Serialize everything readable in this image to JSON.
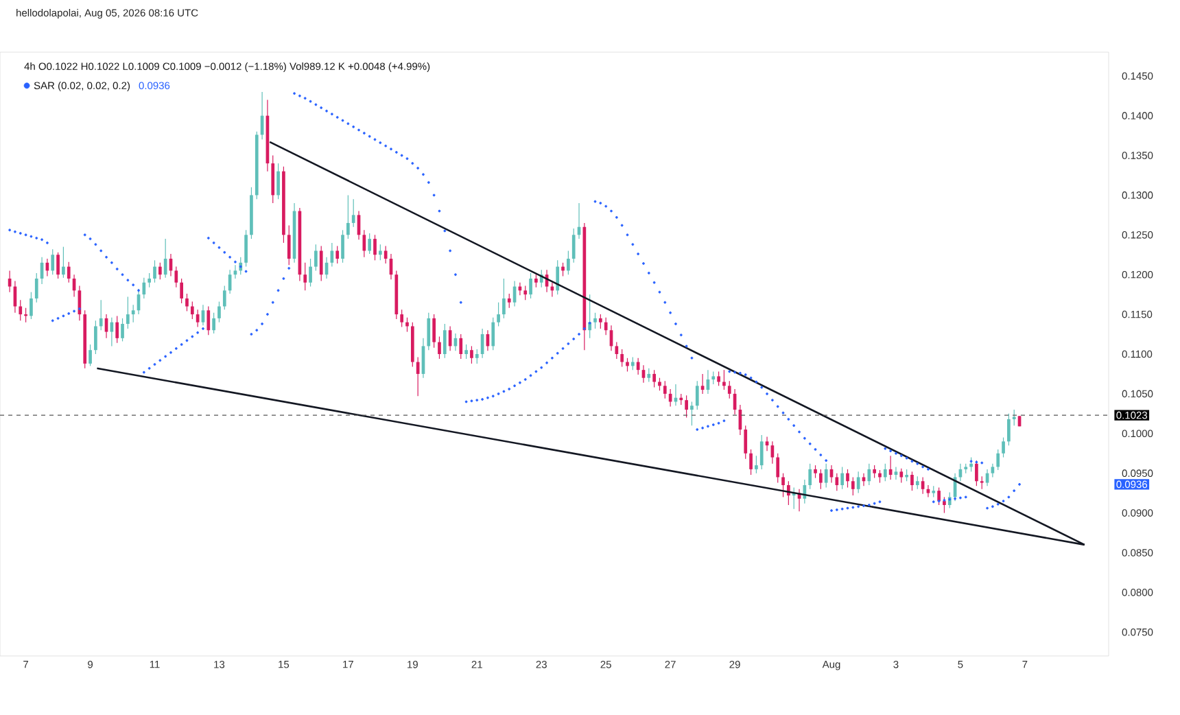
{
  "chart_data": {
    "type": "candlestick",
    "title": "4h  O0.1022 H0.1022 L0.1009 C0.1009 −0.0012 (−1.18%) Vol989.12 K +0.0048 (+4.99%)",
    "annotations": [
      "hellodolapolai, Aug 05, 2026 08:16 UTC",
      "0.0936",
      "0.0936"
    ],
    "x": [
      "2026-07-06T12:00",
      "2026-07-06T16:00",
      "2026-07-06T20:00",
      "2026-07-07T00:00",
      "2026-07-07T04:00",
      "2026-07-07T08:00",
      "2026-07-07T12:00",
      "2026-07-07T16:00",
      "2026-07-07T20:00",
      "2026-07-08T00:00",
      "2026-07-08T04:00",
      "2026-07-08T08:00",
      "2026-07-08T12:00",
      "2026-07-08T16:00",
      "2026-07-08T20:00",
      "2026-07-09T00:00",
      "2026-07-09T04:00",
      "2026-07-09T08:00",
      "2026-07-09T12:00",
      "2026-07-09T16:00",
      "2026-07-09T20:00",
      "2026-07-10T00:00",
      "2026-07-10T04:00",
      "2026-07-10T08:00",
      "2026-07-10T12:00",
      "2026-07-10T16:00",
      "2026-07-10T20:00",
      "2026-07-11T00:00",
      "2026-07-11T04:00",
      "2026-07-11T08:00",
      "2026-07-11T12:00",
      "2026-07-11T16:00",
      "2026-07-11T20:00",
      "2026-07-12T00:00",
      "2026-07-12T04:00",
      "2026-07-12T08:00",
      "2026-07-12T12:00",
      "2026-07-12T16:00",
      "2026-07-12T20:00",
      "2026-07-13T00:00",
      "2026-07-13T04:00",
      "2026-07-13T08:00",
      "2026-07-13T12:00",
      "2026-07-13T16:00",
      "2026-07-13T20:00",
      "2026-07-14T00:00",
      "2026-07-14T04:00",
      "2026-07-14T08:00",
      "2026-07-14T12:00",
      "2026-07-14T16:00",
      "2026-07-14T20:00",
      "2026-07-15T00:00",
      "2026-07-15T04:00",
      "2026-07-15T08:00",
      "2026-07-15T12:00",
      "2026-07-15T16:00",
      "2026-07-15T20:00",
      "2026-07-16T00:00",
      "2026-07-16T04:00",
      "2026-07-16T08:00",
      "2026-07-16T12:00",
      "2026-07-16T16:00",
      "2026-07-16T20:00",
      "2026-07-17T00:00",
      "2026-07-17T04:00",
      "2026-07-17T08:00",
      "2026-07-17T12:00",
      "2026-07-17T16:00",
      "2026-07-17T20:00",
      "2026-07-18T00:00",
      "2026-07-18T04:00",
      "2026-07-18T08:00",
      "2026-07-18T12:00",
      "2026-07-18T16:00",
      "2026-07-18T20:00",
      "2026-07-19T00:00",
      "2026-07-19T04:00",
      "2026-07-19T08:00",
      "2026-07-19T12:00",
      "2026-07-19T16:00",
      "2026-07-19T20:00",
      "2026-07-20T00:00",
      "2026-07-20T04:00",
      "2026-07-20T08:00",
      "2026-07-20T12:00",
      "2026-07-20T16:00",
      "2026-07-20T20:00",
      "2026-07-21T00:00",
      "2026-07-21T04:00",
      "2026-07-21T08:00",
      "2026-07-21T12:00",
      "2026-07-21T16:00",
      "2026-07-21T20:00",
      "2026-07-22T00:00",
      "2026-07-22T04:00",
      "2026-07-22T08:00",
      "2026-07-22T12:00",
      "2026-07-22T16:00",
      "2026-07-22T20:00",
      "2026-07-23T00:00",
      "2026-07-23T04:00",
      "2026-07-23T08:00",
      "2026-07-23T12:00",
      "2026-07-23T16:00",
      "2026-07-23T20:00",
      "2026-07-24T00:00",
      "2026-07-24T04:00",
      "2026-07-24T08:00",
      "2026-07-24T12:00",
      "2026-07-24T16:00",
      "2026-07-24T20:00",
      "2026-07-25T00:00",
      "2026-07-25T04:00",
      "2026-07-25T08:00",
      "2026-07-25T12:00",
      "2026-07-25T16:00",
      "2026-07-25T20:00",
      "2026-07-26T00:00",
      "2026-07-26T04:00",
      "2026-07-26T08:00",
      "2026-07-26T12:00",
      "2026-07-26T16:00",
      "2026-07-26T20:00",
      "2026-07-27T00:00",
      "2026-07-27T04:00",
      "2026-07-27T08:00",
      "2026-07-27T12:00",
      "2026-07-27T16:00",
      "2026-07-27T20:00",
      "2026-07-28T00:00",
      "2026-07-28T04:00",
      "2026-07-28T08:00",
      "2026-07-28T12:00",
      "2026-07-28T16:00",
      "2026-07-28T20:00",
      "2026-07-29T00:00",
      "2026-07-29T04:00",
      "2026-07-29T08:00",
      "2026-07-29T12:00",
      "2026-07-29T16:00",
      "2026-07-29T20:00",
      "2026-07-30T00:00",
      "2026-07-30T04:00",
      "2026-07-30T08:00",
      "2026-07-30T12:00",
      "2026-07-30T16:00",
      "2026-07-30T20:00",
      "2026-07-31T00:00",
      "2026-07-31T04:00",
      "2026-07-31T08:00",
      "2026-07-31T12:00",
      "2026-07-31T16:00",
      "2026-07-31T20:00",
      "2026-08-01T00:00",
      "2026-08-01T04:00",
      "2026-08-01T08:00",
      "2026-08-01T12:00",
      "2026-08-01T16:00",
      "2026-08-01T20:00",
      "2026-08-02T00:00",
      "2026-08-02T04:00",
      "2026-08-02T08:00",
      "2026-08-02T12:00",
      "2026-08-02T16:00",
      "2026-08-02T20:00",
      "2026-08-03T00:00",
      "2026-08-03T04:00",
      "2026-08-03T08:00",
      "2026-08-03T12:00",
      "2026-08-03T16:00",
      "2026-08-03T20:00",
      "2026-08-04T00:00",
      "2026-08-04T04:00",
      "2026-08-04T08:00",
      "2026-08-04T12:00",
      "2026-08-04T16:00",
      "2026-08-04T20:00",
      "2026-08-05T00:00",
      "2026-08-05T04:00",
      "2026-08-05T08:00",
      "2026-08-05T12:00",
      "2026-08-05T16:00",
      "2026-08-05T20:00",
      "2026-08-06T00:00",
      "2026-08-06T04:00",
      "2026-08-06T08:00",
      "2026-08-06T12:00",
      "2026-08-06T16:00",
      "2026-08-06T20:00"
    ],
    "ohlc": [
      [
        0.1195,
        0.1205,
        0.1178,
        0.1185
      ],
      [
        0.1185,
        0.1192,
        0.1152,
        0.116
      ],
      [
        0.116,
        0.1168,
        0.1142,
        0.115
      ],
      [
        0.115,
        0.1158,
        0.114,
        0.1148
      ],
      [
        0.1148,
        0.1178,
        0.1144,
        0.117
      ],
      [
        0.117,
        0.1202,
        0.1165,
        0.1195
      ],
      [
        0.1195,
        0.1222,
        0.1188,
        0.1215
      ],
      [
        0.1215,
        0.122,
        0.1198,
        0.1205
      ],
      [
        0.1205,
        0.1232,
        0.12,
        0.1225
      ],
      [
        0.1225,
        0.1228,
        0.1195,
        0.12
      ],
      [
        0.12,
        0.1235,
        0.1196,
        0.121
      ],
      [
        0.121,
        0.1216,
        0.119,
        0.1195
      ],
      [
        0.1195,
        0.12,
        0.1172,
        0.118
      ],
      [
        0.118,
        0.1186,
        0.1142,
        0.115
      ],
      [
        0.115,
        0.1155,
        0.1082,
        0.1088
      ],
      [
        0.1088,
        0.1112,
        0.1085,
        0.1105
      ],
      [
        0.1105,
        0.1142,
        0.11,
        0.1135
      ],
      [
        0.1135,
        0.1168,
        0.113,
        0.1145
      ],
      [
        0.1145,
        0.115,
        0.112,
        0.1128
      ],
      [
        0.1128,
        0.1146,
        0.111,
        0.114
      ],
      [
        0.114,
        0.1148,
        0.1114,
        0.112
      ],
      [
        0.112,
        0.1145,
        0.1116,
        0.1138
      ],
      [
        0.1138,
        0.1172,
        0.1132,
        0.115
      ],
      [
        0.115,
        0.1162,
        0.114,
        0.1155
      ],
      [
        0.1155,
        0.1182,
        0.115,
        0.1175
      ],
      [
        0.1175,
        0.1196,
        0.117,
        0.119
      ],
      [
        0.119,
        0.1202,
        0.1184,
        0.1195
      ],
      [
        0.1195,
        0.1218,
        0.119,
        0.121
      ],
      [
        0.121,
        0.1215,
        0.1194,
        0.12
      ],
      [
        0.12,
        0.1245,
        0.1196,
        0.122
      ],
      [
        0.122,
        0.1226,
        0.1198,
        0.1205
      ],
      [
        0.1205,
        0.121,
        0.1184,
        0.119
      ],
      [
        0.119,
        0.1195,
        0.1164,
        0.117
      ],
      [
        0.117,
        0.1176,
        0.1154,
        0.116
      ],
      [
        0.116,
        0.1166,
        0.1144,
        0.115
      ],
      [
        0.115,
        0.1156,
        0.1134,
        0.114
      ],
      [
        0.114,
        0.1162,
        0.1136,
        0.1155
      ],
      [
        0.1155,
        0.116,
        0.1124,
        0.113
      ],
      [
        0.113,
        0.1152,
        0.1126,
        0.1145
      ],
      [
        0.1145,
        0.1166,
        0.114,
        0.116
      ],
      [
        0.116,
        0.1186,
        0.1156,
        0.118
      ],
      [
        0.118,
        0.1206,
        0.1176,
        0.12
      ],
      [
        0.12,
        0.1212,
        0.1195,
        0.1205
      ],
      [
        0.1205,
        0.1222,
        0.12,
        0.1215
      ],
      [
        0.1215,
        0.1256,
        0.121,
        0.125
      ],
      [
        0.125,
        0.131,
        0.1245,
        0.13
      ],
      [
        0.13,
        0.138,
        0.1295,
        0.1376
      ],
      [
        0.1376,
        0.143,
        0.137,
        0.14
      ],
      [
        0.14,
        0.142,
        0.133,
        0.134
      ],
      [
        0.134,
        0.135,
        0.129,
        0.13
      ],
      [
        0.13,
        0.134,
        0.1295,
        0.133
      ],
      [
        0.133,
        0.1336,
        0.124,
        0.125
      ],
      [
        0.125,
        0.1262,
        0.1212,
        0.122
      ],
      [
        0.122,
        0.129,
        0.1215,
        0.128
      ],
      [
        0.128,
        0.1284,
        0.1192,
        0.12
      ],
      [
        0.12,
        0.1215,
        0.118,
        0.119
      ],
      [
        0.119,
        0.122,
        0.1185,
        0.121
      ],
      [
        0.121,
        0.1238,
        0.1205,
        0.123
      ],
      [
        0.123,
        0.1236,
        0.1192,
        0.12
      ],
      [
        0.12,
        0.1222,
        0.1195,
        0.1215
      ],
      [
        0.1215,
        0.124,
        0.121,
        0.123
      ],
      [
        0.123,
        0.1236,
        0.1214,
        0.122
      ],
      [
        0.122,
        0.1256,
        0.1215,
        0.125
      ],
      [
        0.125,
        0.13,
        0.1245,
        0.1265
      ],
      [
        0.1265,
        0.1295,
        0.126,
        0.1275
      ],
      [
        0.1275,
        0.128,
        0.1244,
        0.125
      ],
      [
        0.125,
        0.1256,
        0.1222,
        0.123
      ],
      [
        0.123,
        0.1252,
        0.1226,
        0.1245
      ],
      [
        0.1245,
        0.125,
        0.1218,
        0.1225
      ],
      [
        0.1225,
        0.1238,
        0.1218,
        0.123
      ],
      [
        0.123,
        0.1236,
        0.1214,
        0.122
      ],
      [
        0.122,
        0.1226,
        0.1194,
        0.12
      ],
      [
        0.12,
        0.1205,
        0.1144,
        0.115
      ],
      [
        0.115,
        0.1156,
        0.1134,
        0.114
      ],
      [
        0.114,
        0.1146,
        0.1128,
        0.1135
      ],
      [
        0.1135,
        0.114,
        0.1084,
        0.109
      ],
      [
        0.109,
        0.1096,
        0.1047,
        0.1075
      ],
      [
        0.1075,
        0.112,
        0.107,
        0.111
      ],
      [
        0.111,
        0.1152,
        0.1105,
        0.1145
      ],
      [
        0.1145,
        0.115,
        0.1108,
        0.1115
      ],
      [
        0.1115,
        0.1122,
        0.1094,
        0.11
      ],
      [
        0.11,
        0.1138,
        0.1095,
        0.113
      ],
      [
        0.113,
        0.1135,
        0.1104,
        0.111
      ],
      [
        0.111,
        0.1126,
        0.1104,
        0.112
      ],
      [
        0.112,
        0.1125,
        0.1094,
        0.11
      ],
      [
        0.11,
        0.1112,
        0.1094,
        0.1105
      ],
      [
        0.1105,
        0.111,
        0.1088,
        0.1095
      ],
      [
        0.1095,
        0.1106,
        0.1088,
        0.11
      ],
      [
        0.11,
        0.1132,
        0.1095,
        0.1125
      ],
      [
        0.1125,
        0.113,
        0.1104,
        0.111
      ],
      [
        0.111,
        0.1146,
        0.1105,
        0.114
      ],
      [
        0.114,
        0.1165,
        0.1135,
        0.115
      ],
      [
        0.115,
        0.1195,
        0.1145,
        0.117
      ],
      [
        0.117,
        0.1176,
        0.1158,
        0.1165
      ],
      [
        0.1165,
        0.1192,
        0.116,
        0.1185
      ],
      [
        0.1185,
        0.119,
        0.1174,
        0.118
      ],
      [
        0.118,
        0.1186,
        0.1168,
        0.1175
      ],
      [
        0.1175,
        0.1202,
        0.117,
        0.1195
      ],
      [
        0.1195,
        0.12,
        0.1184,
        0.119
      ],
      [
        0.119,
        0.1206,
        0.1184,
        0.12
      ],
      [
        0.12,
        0.1206,
        0.1178,
        0.1185
      ],
      [
        0.1185,
        0.119,
        0.1172,
        0.118
      ],
      [
        0.118,
        0.1218,
        0.1175,
        0.121
      ],
      [
        0.121,
        0.1215,
        0.1198,
        0.1205
      ],
      [
        0.1205,
        0.123,
        0.12,
        0.122
      ],
      [
        0.122,
        0.1258,
        0.1215,
        0.125
      ],
      [
        0.125,
        0.129,
        0.1245,
        0.126
      ],
      [
        0.126,
        0.1265,
        0.1105,
        0.113
      ],
      [
        0.113,
        0.1175,
        0.112,
        0.114
      ],
      [
        0.114,
        0.1152,
        0.1132,
        0.1145
      ],
      [
        0.1145,
        0.115,
        0.1132,
        0.114
      ],
      [
        0.114,
        0.1146,
        0.1124,
        0.113
      ],
      [
        0.113,
        0.1136,
        0.1104,
        0.111
      ],
      [
        0.111,
        0.1115,
        0.1094,
        0.11
      ],
      [
        0.11,
        0.1106,
        0.1084,
        0.109
      ],
      [
        0.109,
        0.1095,
        0.1078,
        0.1085
      ],
      [
        0.1085,
        0.1096,
        0.108,
        0.109
      ],
      [
        0.109,
        0.1095,
        0.1074,
        0.108
      ],
      [
        0.108,
        0.1086,
        0.1064,
        0.107
      ],
      [
        0.107,
        0.1082,
        0.1065,
        0.1075
      ],
      [
        0.1075,
        0.108,
        0.1058,
        0.1065
      ],
      [
        0.1065,
        0.107,
        0.1054,
        0.106
      ],
      [
        0.106,
        0.1066,
        0.1044,
        0.105
      ],
      [
        0.105,
        0.1056,
        0.1034,
        0.104
      ],
      [
        0.104,
        0.1062,
        0.1035,
        0.1045
      ],
      [
        0.1045,
        0.105,
        0.1036,
        0.1042
      ],
      [
        0.1042,
        0.1048,
        0.102,
        0.103
      ],
      [
        0.103,
        0.104,
        0.101,
        0.1035
      ],
      [
        0.1035,
        0.1066,
        0.103,
        0.106
      ],
      [
        0.106,
        0.1075,
        0.105,
        0.1055
      ],
      [
        0.1055,
        0.108,
        0.105,
        0.1068
      ],
      [
        0.1068,
        0.1078,
        0.1062,
        0.1072
      ],
      [
        0.1072,
        0.1078,
        0.106,
        0.1065
      ],
      [
        0.1065,
        0.108,
        0.1055,
        0.106
      ],
      [
        0.106,
        0.1066,
        0.1044,
        0.105
      ],
      [
        0.105,
        0.1056,
        0.1024,
        0.103
      ],
      [
        0.103,
        0.1036,
        0.0998,
        0.1005
      ],
      [
        0.1005,
        0.101,
        0.0968,
        0.0975
      ],
      [
        0.0975,
        0.098,
        0.0948,
        0.0955
      ],
      [
        0.0955,
        0.0972,
        0.095,
        0.096
      ],
      [
        0.096,
        0.0998,
        0.0955,
        0.099
      ],
      [
        0.099,
        0.0996,
        0.0978,
        0.0985
      ],
      [
        0.0985,
        0.099,
        0.0962,
        0.097
      ],
      [
        0.097,
        0.0975,
        0.0938,
        0.0945
      ],
      [
        0.0945,
        0.095,
        0.092,
        0.0935
      ],
      [
        0.0935,
        0.094,
        0.091,
        0.0922
      ],
      [
        0.0922,
        0.0932,
        0.0905,
        0.0925
      ],
      [
        0.0925,
        0.093,
        0.0902,
        0.0918
      ],
      [
        0.0918,
        0.0942,
        0.0912,
        0.0935
      ],
      [
        0.0935,
        0.0962,
        0.093,
        0.0955
      ],
      [
        0.0955,
        0.096,
        0.0944,
        0.095
      ],
      [
        0.095,
        0.0955,
        0.093,
        0.0938
      ],
      [
        0.0938,
        0.0962,
        0.0932,
        0.0955
      ],
      [
        0.0955,
        0.096,
        0.0938,
        0.0945
      ],
      [
        0.0945,
        0.095,
        0.0928,
        0.0935
      ],
      [
        0.0935,
        0.0958,
        0.093,
        0.095
      ],
      [
        0.095,
        0.0955,
        0.0932,
        0.094
      ],
      [
        0.094,
        0.0945,
        0.0922,
        0.093
      ],
      [
        0.093,
        0.0952,
        0.0925,
        0.0945
      ],
      [
        0.0945,
        0.095,
        0.0934,
        0.094
      ],
      [
        0.094,
        0.0962,
        0.0935,
        0.0955
      ],
      [
        0.0955,
        0.096,
        0.0944,
        0.095
      ],
      [
        0.095,
        0.0954,
        0.0938,
        0.0945
      ],
      [
        0.0945,
        0.0962,
        0.094,
        0.0955
      ],
      [
        0.0955,
        0.0972,
        0.0942,
        0.0948
      ],
      [
        0.0948,
        0.0958,
        0.0942,
        0.0952
      ],
      [
        0.0952,
        0.0956,
        0.0938,
        0.0945
      ],
      [
        0.0945,
        0.0955,
        0.094,
        0.0948
      ],
      [
        0.0948,
        0.0952,
        0.0928,
        0.0935
      ],
      [
        0.0935,
        0.0946,
        0.093,
        0.094
      ],
      [
        0.094,
        0.0945,
        0.0924,
        0.093
      ],
      [
        0.093,
        0.0935,
        0.092,
        0.0925
      ],
      [
        0.0925,
        0.0934,
        0.092,
        0.0928
      ],
      [
        0.0928,
        0.0932,
        0.091,
        0.0915
      ],
      [
        0.0915,
        0.092,
        0.09,
        0.091
      ],
      [
        0.091,
        0.0926,
        0.0906,
        0.092
      ],
      [
        0.092,
        0.095,
        0.0915,
        0.0945
      ],
      [
        0.0945,
        0.0962,
        0.094,
        0.0955
      ],
      [
        0.0955,
        0.0962,
        0.095,
        0.0958
      ],
      [
        0.0958,
        0.097,
        0.0952,
        0.0962
      ],
      [
        0.0962,
        0.0966,
        0.0934,
        0.094
      ],
      [
        0.094,
        0.0946,
        0.093,
        0.0938
      ],
      [
        0.0938,
        0.0955,
        0.0934,
        0.095
      ],
      [
        0.095,
        0.0962,
        0.0945,
        0.0958
      ],
      [
        0.0958,
        0.098,
        0.0954,
        0.0975
      ],
      [
        0.0975,
        0.0995,
        0.097,
        0.099
      ],
      [
        0.099,
        0.1025,
        0.0985,
        0.1018
      ],
      [
        0.1018,
        0.103,
        0.101,
        0.1021
      ],
      [
        0.1022,
        0.1022,
        0.1009,
        0.1009
      ]
    ],
    "series": [
      {
        "name": "SAR (0.02, 0.02, 0.2)",
        "type": "scatter",
        "color": "#2962ff",
        "marker": "circle",
        "values": [
          0.1256,
          0.1254,
          0.1252,
          0.125,
          0.1248,
          0.1246,
          0.1244,
          0.124,
          0.1142,
          0.1145,
          0.1148,
          0.1151,
          0.1154,
          0.1157,
          0.125,
          0.1245,
          0.1238,
          0.123,
          0.1222,
          0.1215,
          0.1207,
          0.12,
          0.1193,
          0.1187,
          0.118,
          0.1077,
          0.1082,
          0.1087,
          0.1092,
          0.1097,
          0.1102,
          0.1107,
          0.1112,
          0.1117,
          0.1122,
          0.1127,
          0.1132,
          0.1246,
          0.124,
          0.1234,
          0.1228,
          0.1222,
          0.1216,
          0.121,
          0.1204,
          0.1125,
          0.113,
          0.1138,
          0.115,
          0.1165,
          0.118,
          0.1195,
          0.1208,
          0.1428,
          0.1425,
          0.1422,
          0.1418,
          0.1414,
          0.141,
          0.1406,
          0.1402,
          0.1398,
          0.1394,
          0.139,
          0.1386,
          0.1382,
          0.1378,
          0.1374,
          0.137,
          0.1366,
          0.1362,
          0.1358,
          0.1354,
          0.135,
          0.1346,
          0.134,
          0.1334,
          0.1326,
          0.1316,
          0.13,
          0.128,
          0.1255,
          0.123,
          0.12,
          0.1165,
          0.104,
          0.1041,
          0.1042,
          0.1043,
          0.1045,
          0.1047,
          0.105,
          0.1053,
          0.1056,
          0.106,
          0.1064,
          0.1068,
          0.1073,
          0.1078,
          0.1083,
          0.1089,
          0.1095,
          0.1101,
          0.1107,
          0.1113,
          0.1119,
          0.1125,
          0.1132,
          0.1139,
          0.1292,
          0.129,
          0.1286,
          0.128,
          0.1272,
          0.1262,
          0.125,
          0.1238,
          0.1226,
          0.1214,
          0.1202,
          0.119,
          0.1178,
          0.1165,
          0.1152,
          0.1138,
          0.1124,
          0.111,
          0.1095,
          0.1005,
          0.1007,
          0.1009,
          0.1011,
          0.1013,
          0.1016,
          0.1078,
          0.1077,
          0.1076,
          0.1074,
          0.107,
          0.1065,
          0.1058,
          0.105,
          0.1042,
          0.1034,
          0.1026,
          0.1018,
          0.101,
          0.1002,
          0.0994,
          0.0987,
          0.098,
          0.0973,
          0.0966,
          0.0903,
          0.0904,
          0.0905,
          0.0906,
          0.0907,
          0.0908,
          0.0909,
          0.091,
          0.0912,
          0.0914,
          0.0981,
          0.0978,
          0.0975,
          0.0972,
          0.0969,
          0.0965,
          0.0962,
          0.0958,
          0.0955,
          0.0914,
          0.0915,
          0.0916,
          0.0917,
          0.0918,
          0.0919,
          0.092,
          0.0965,
          0.0964,
          0.0963,
          0.0906,
          0.0908,
          0.0911,
          0.0915,
          0.092,
          0.0928,
          0.0936
        ]
      },
      {
        "type": "line",
        "color": "#131722",
        "x": [
          "2026-07-14T13:41",
          "2026-08-08T20:24"
        ],
        "values": [
          0.1367,
          0.086
        ]
      },
      {
        "type": "line",
        "color": "#131722",
        "x": [
          "2026-07-09T05:02",
          "2026-08-08T20:24"
        ],
        "values": [
          0.1082,
          0.086
        ]
      }
    ],
    "legend": "top left",
    "ref_lines": [
      {
        "axis": "y",
        "value": 0.1023,
        "label": "0.1023",
        "color": "#555555",
        "line_style": "dashed"
      }
    ],
    "xlim": [
      "2026-07-06T04:48",
      "2026-08-09T14:24"
    ],
    "xticks": [
      {
        "value": "2026-07-07",
        "label": "7"
      },
      {
        "value": "2026-07-09",
        "label": "9"
      },
      {
        "value": "2026-07-11",
        "label": "11"
      },
      {
        "value": "2026-07-13",
        "label": "13"
      },
      {
        "value": "2026-07-15",
        "label": "15"
      },
      {
        "value": "2026-07-17",
        "label": "17"
      },
      {
        "value": "2026-07-19",
        "label": "19"
      },
      {
        "value": "2026-07-21",
        "label": "21"
      },
      {
        "value": "2026-07-23",
        "label": "23"
      },
      {
        "value": "2026-07-25",
        "label": "25"
      },
      {
        "value": "2026-07-27",
        "label": "27"
      },
      {
        "value": "2026-07-29",
        "label": "29"
      },
      {
        "value": "2026-08-01",
        "label": "Aug"
      },
      {
        "value": "2026-08-03",
        "label": "3"
      },
      {
        "value": "2026-08-05",
        "label": "5"
      },
      {
        "value": "2026-08-07",
        "label": "7"
      }
    ],
    "ylim": [
      0.072,
      0.148
    ],
    "yticks": [
      {
        "value": 0.075,
        "label": "0.0750"
      },
      {
        "value": 0.08,
        "label": "0.0800"
      },
      {
        "value": 0.085,
        "label": "0.0850"
      },
      {
        "value": 0.09,
        "label": "0.0900"
      },
      {
        "value": 0.095,
        "label": "0.0950"
      },
      {
        "value": 0.1,
        "label": "0.1000"
      },
      {
        "value": 0.105,
        "label": "0.1050"
      },
      {
        "value": 0.11,
        "label": "0.1100"
      },
      {
        "value": 0.115,
        "label": "0.1150"
      },
      {
        "value": 0.12,
        "label": "0.1200"
      },
      {
        "value": 0.125,
        "label": "0.1250"
      },
      {
        "value": 0.13,
        "label": "0.1300"
      },
      {
        "value": 0.135,
        "label": "0.1350"
      },
      {
        "value": 0.14,
        "label": "0.1400"
      },
      {
        "value": 0.145,
        "label": "0.1450"
      }
    ]
  }
}
